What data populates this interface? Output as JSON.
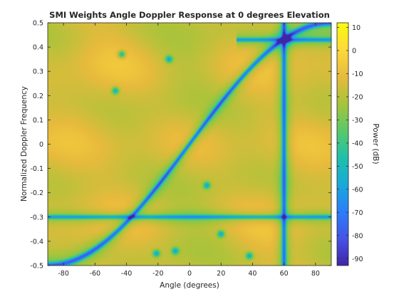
{
  "chart_data": {
    "type": "heatmap",
    "title": "SMI Weights Angle Doppler Response at 0 degrees Elevation",
    "xlabel": "Angle (degrees)",
    "ylabel": "Normalized Doppler Frequency",
    "colorbar_label": "Power (dB)",
    "xlim": [
      -90,
      90
    ],
    "ylim": [
      -0.5,
      0.5
    ],
    "clim": [
      -93,
      12
    ],
    "x_ticks": [
      -80,
      -60,
      -40,
      -20,
      0,
      20,
      40,
      60,
      80
    ],
    "y_ticks": [
      -0.5,
      -0.4,
      -0.3,
      -0.2,
      -0.1,
      0,
      0.1,
      0.2,
      0.3,
      0.4,
      0.5
    ],
    "colorbar_ticks": [
      10,
      0,
      -10,
      -20,
      -30,
      -40,
      -50,
      -60,
      -70,
      -80,
      -90
    ],
    "colormap": [
      "#3e26a8",
      "#4653e6",
      "#2b7ef9",
      "#1aa9d8",
      "#1fc0ab",
      "#59c96a",
      "#a6c43a",
      "#e7ba3c",
      "#fdd93b",
      "#f9fb0e"
    ],
    "background_level_db": -8,
    "clutter_ridge": {
      "description_curve": "doppler = 0.5*sin(angle)",
      "level_db": -58
    },
    "jammer_notch": {
      "angle": 60,
      "level_db": -55
    },
    "horizontal_notches": {
      "doppler": [
        -0.3,
        0.43
      ],
      "level_db": -45
    }
  }
}
